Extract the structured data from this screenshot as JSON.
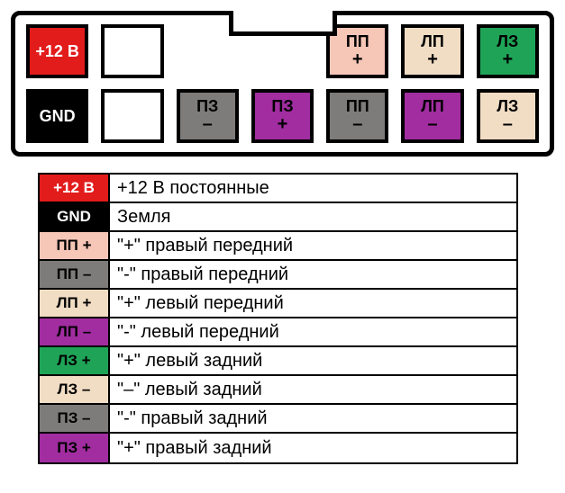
{
  "colors": {
    "red": "#e21b1b",
    "black": "#000000",
    "white": "#ffffff",
    "pink": "#f6c6b7",
    "gray": "#7d7c7a",
    "cream": "#f1ddc4",
    "purple": "#a12da0",
    "green": "#1fa457"
  },
  "connector": {
    "top_row": [
      {
        "label": "+12 В",
        "sub": "",
        "fill": "#e21b1b",
        "text": "#ffffff"
      },
      {
        "label": "",
        "sub": "",
        "fill": "#ffffff",
        "text": "#000000",
        "empty": true
      },
      {
        "spacer": true
      },
      {
        "spacer": true
      },
      {
        "label": "ПП",
        "sub": "+",
        "fill": "#f6c6b7",
        "text": "#000000"
      },
      {
        "label": "ЛП",
        "sub": "+",
        "fill": "#f1ddc4",
        "text": "#000000"
      },
      {
        "label": "ЛЗ",
        "sub": "+",
        "fill": "#1fa457",
        "text": "#000000"
      }
    ],
    "bottom_row": [
      {
        "label": "GND",
        "sub": "",
        "fill": "#000000",
        "text": "#ffffff"
      },
      {
        "label": "",
        "sub": "",
        "fill": "#ffffff",
        "text": "#000000",
        "empty": true
      },
      {
        "label": "ПЗ",
        "sub": "–",
        "fill": "#7d7c7a",
        "text": "#000000"
      },
      {
        "label": "ПЗ",
        "sub": "+",
        "fill": "#a12da0",
        "text": "#000000"
      },
      {
        "label": "ПП",
        "sub": "–",
        "fill": "#7d7c7a",
        "text": "#000000"
      },
      {
        "label": "ЛП",
        "sub": "–",
        "fill": "#a12da0",
        "text": "#000000"
      },
      {
        "label": "ЛЗ",
        "sub": "–",
        "fill": "#f1ddc4",
        "text": "#000000"
      }
    ]
  },
  "legend": [
    {
      "key": "+12 В",
      "key_fill": "#e21b1b",
      "key_text": "#ffffff",
      "desc": "+12 В постоянные"
    },
    {
      "key": "GND",
      "key_fill": "#000000",
      "key_text": "#ffffff",
      "desc": "Земля"
    },
    {
      "key": "ПП +",
      "key_fill": "#f6c6b7",
      "key_text": "#000000",
      "desc": "\"+\" правый передний"
    },
    {
      "key": "ПП –",
      "key_fill": "#7d7c7a",
      "key_text": "#000000",
      "desc": "\"-\" правый передний"
    },
    {
      "key": "ЛП +",
      "key_fill": "#f1ddc4",
      "key_text": "#000000",
      "desc": "\"+\" левый передний"
    },
    {
      "key": "ЛП –",
      "key_fill": "#a12da0",
      "key_text": "#000000",
      "desc": "\"-\" левый передний"
    },
    {
      "key": "ЛЗ +",
      "key_fill": "#1fa457",
      "key_text": "#000000",
      "desc": "\"+\" левый задний"
    },
    {
      "key": "ЛЗ –",
      "key_fill": "#f1ddc4",
      "key_text": "#000000",
      "desc": "\"–\" левый задний"
    },
    {
      "key": "ПЗ –",
      "key_fill": "#7d7c7a",
      "key_text": "#000000",
      "desc": "\"-\" правый задний"
    },
    {
      "key": "ПЗ +",
      "key_fill": "#a12da0",
      "key_text": "#000000",
      "desc": "\"+\" правый задний"
    }
  ]
}
